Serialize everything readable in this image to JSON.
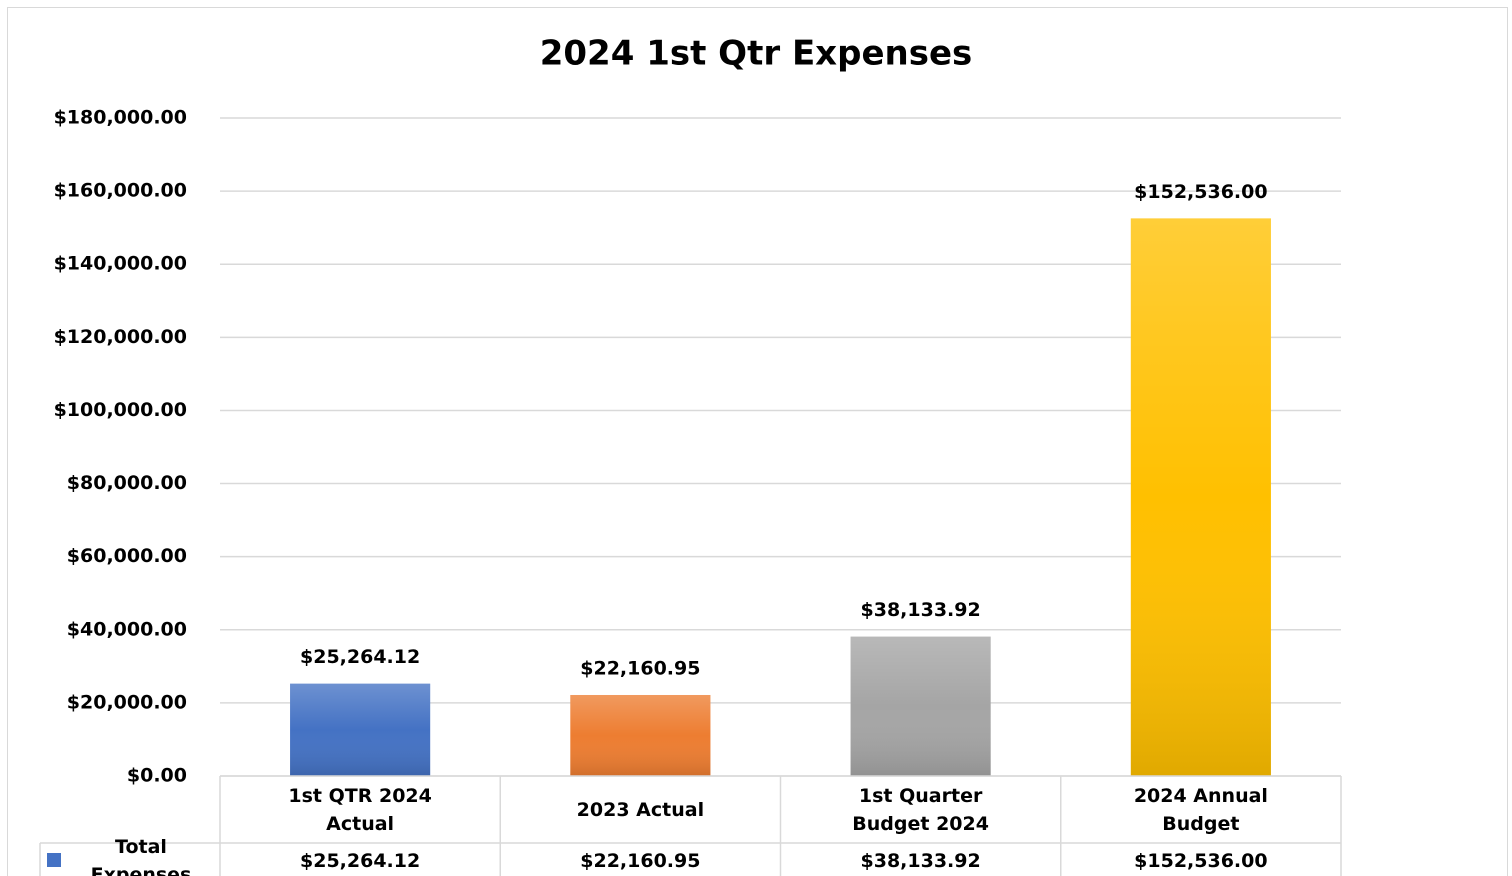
{
  "chart_data": {
    "type": "bar",
    "title": "2024 1st Qtr Expenses",
    "categories": [
      "1st QTR 2024 Actual",
      "2023 Actual",
      "1st Quarter Budget 2024",
      "2024 Annual Budget"
    ],
    "series": [
      {
        "name": "Total Expenses",
        "color": "#4472c4",
        "colors": [
          "#4472c4",
          "#ed7d31",
          "#a5a5a5",
          "#ffc000"
        ],
        "values": [
          25264.12,
          22160.95,
          38133.92,
          152536.0
        ],
        "value_labels": [
          "$25,264.12",
          "$22,160.95",
          "$38,133.92",
          "$152,536.00"
        ]
      }
    ],
    "ylim": [
      0,
      180000
    ],
    "yticks": [
      {
        "value": 0,
        "label": "$0.00"
      },
      {
        "value": 20000,
        "label": "$20,000.00"
      },
      {
        "value": 40000,
        "label": "$40,000.00"
      },
      {
        "value": 60000,
        "label": "$60,000.00"
      },
      {
        "value": 80000,
        "label": "$80,000.00"
      },
      {
        "value": 100000,
        "label": "$100,000.00"
      },
      {
        "value": 120000,
        "label": "$120,000.00"
      },
      {
        "value": 140000,
        "label": "$140,000.00"
      },
      {
        "value": 160000,
        "label": "$160,000.00"
      },
      {
        "value": 180000,
        "label": "$180,000.00"
      }
    ],
    "grid": true,
    "data_table": true
  }
}
